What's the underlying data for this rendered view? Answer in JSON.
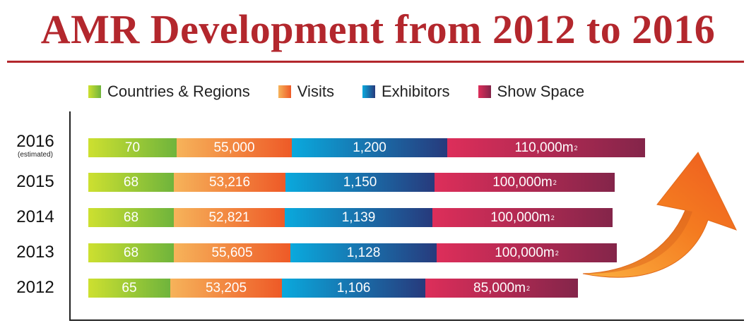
{
  "title": "AMR Development from 2012 to 2016",
  "colors": {
    "title": "#b3272d",
    "countries": "#8cc63f",
    "visits": "#f47b32",
    "exhibitors": "#1a6fb5",
    "show_space": "#c02a58",
    "arrow": "#f47b20"
  },
  "chart_data": {
    "type": "bar",
    "orientation": "horizontal",
    "stacked": true,
    "title": "AMR Development from 2012 to 2016",
    "legend_placement": "top",
    "categories": [
      "2016",
      "2015",
      "2014",
      "2013",
      "2012"
    ],
    "category_notes": [
      "(estimated)",
      "",
      "",
      "",
      ""
    ],
    "series": [
      {
        "name": "Countries & Regions",
        "values": [
          70,
          68,
          68,
          68,
          65
        ],
        "labels": [
          "70",
          "68",
          "68",
          "68",
          "65"
        ]
      },
      {
        "name": "Visits",
        "values": [
          55000,
          53216,
          52821,
          55605,
          53205
        ],
        "labels": [
          "55,000",
          "53,216",
          "52,821",
          "55,605",
          "53,205"
        ]
      },
      {
        "name": "Exhibitors",
        "values": [
          1200,
          1150,
          1139,
          1128,
          1106
        ],
        "labels": [
          "1,200",
          "1,150",
          "1,139",
          "1,128",
          "1,106"
        ]
      },
      {
        "name": "Show Space",
        "values": [
          110000,
          100000,
          100000,
          100000,
          85000
        ],
        "labels": [
          "110,000m",
          "100,000m",
          "100,000m",
          "100,000m",
          "85,000m"
        ],
        "unit_superscript": "2"
      }
    ]
  }
}
